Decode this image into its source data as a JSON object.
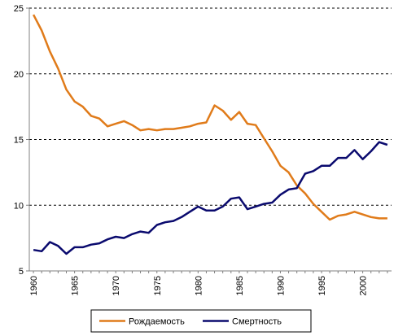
{
  "chart_data": {
    "type": "line",
    "x": [
      1960,
      1961,
      1962,
      1963,
      1964,
      1965,
      1966,
      1967,
      1968,
      1969,
      1970,
      1971,
      1972,
      1973,
      1974,
      1975,
      1976,
      1977,
      1978,
      1979,
      1980,
      1981,
      1982,
      1983,
      1984,
      1985,
      1986,
      1987,
      1988,
      1989,
      1990,
      1991,
      1992,
      1993,
      1994,
      1995,
      1996,
      1997,
      1998,
      1999,
      2000,
      2001,
      2002,
      2003
    ],
    "series": [
      {
        "name": "Рождаемость",
        "color": "#e07b1a",
        "values": [
          24.5,
          23.3,
          21.7,
          20.4,
          18.8,
          17.9,
          17.5,
          16.8,
          16.6,
          16.0,
          16.2,
          16.4,
          16.1,
          15.7,
          15.8,
          15.7,
          15.8,
          15.8,
          15.9,
          16.0,
          16.2,
          16.3,
          17.6,
          17.2,
          16.5,
          17.1,
          16.2,
          16.1,
          15.1,
          14.1,
          13.0,
          12.5,
          11.5,
          10.9,
          10.1,
          9.5,
          8.9,
          9.2,
          9.3,
          9.5,
          9.3,
          9.1,
          9.0,
          9.0
        ]
      },
      {
        "name": "Смертность",
        "color": "#0a0a6e",
        "values": [
          6.6,
          6.5,
          7.2,
          6.9,
          6.3,
          6.8,
          6.8,
          7.0,
          7.1,
          7.4,
          7.6,
          7.5,
          7.8,
          8.0,
          7.9,
          8.5,
          8.7,
          8.8,
          9.1,
          9.5,
          9.9,
          9.6,
          9.6,
          9.9,
          10.5,
          10.6,
          9.7,
          9.9,
          10.1,
          10.2,
          10.8,
          11.2,
          11.3,
          12.4,
          12.6,
          13.0,
          13.0,
          13.6,
          13.6,
          14.2,
          13.5,
          14.1,
          14.8,
          14.6
        ]
      }
    ],
    "x_ticks": [
      "1960",
      "1965",
      "1970",
      "1975",
      "1980",
      "1985",
      "1990",
      "1995",
      "2000"
    ],
    "y_ticks": [
      "5",
      "10",
      "15",
      "20",
      "25"
    ],
    "ylim": [
      5,
      25
    ],
    "xlim": [
      1959.5,
      2003.5
    ],
    "grid": "horizontal dashed",
    "legend_position": "bottom",
    "title": "",
    "xlabel": "",
    "ylabel": ""
  }
}
